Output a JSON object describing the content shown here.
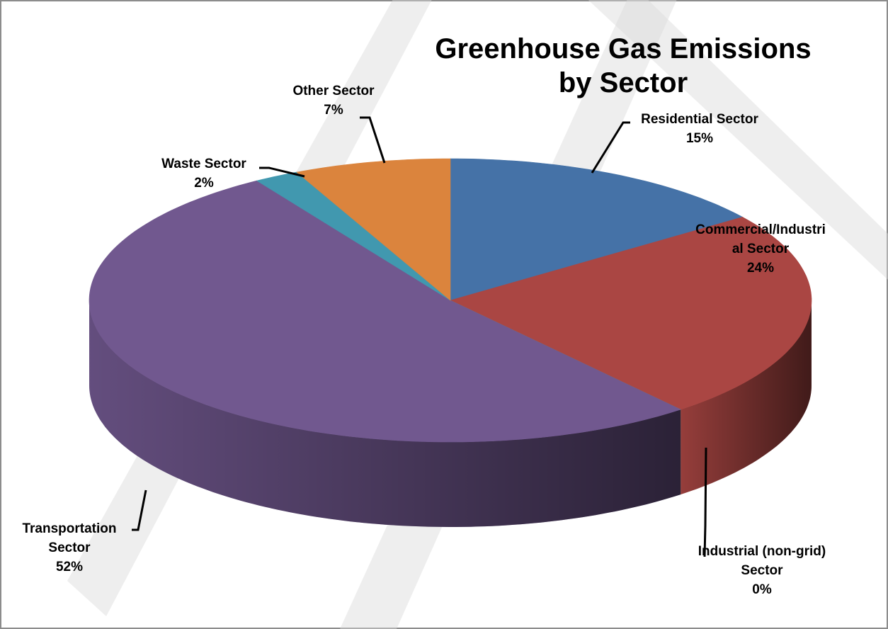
{
  "chart_data": {
    "type": "pie",
    "title": "Greenhouse Gas Emissions by Sector",
    "title_lines": [
      "Greenhouse Gas Emissions",
      "by Sector"
    ],
    "slices": [
      {
        "label": "Residential Sector",
        "value": 15,
        "value_label": "15%",
        "label_lines": [
          "Residential Sector",
          "15%"
        ],
        "color": "#4572a7"
      },
      {
        "label": "Commercial/Industrial Sector",
        "value": 24,
        "value_label": "24%",
        "label_lines": [
          "Commercial/Industri",
          "al Sector",
          "24%"
        ],
        "color": "#aa4643"
      },
      {
        "label": "Industrial (non-grid) Sector",
        "value": 0,
        "value_label": "0%",
        "label_lines": [
          "Industrial (non-grid)",
          "Sector",
          "0%"
        ],
        "color": "#89a54e"
      },
      {
        "label": "Transportation Sector",
        "value": 52,
        "value_label": "52%",
        "label_lines": [
          "Transportation",
          "Sector",
          "52%"
        ],
        "color": "#71588f"
      },
      {
        "label": "Waste Sector",
        "value": 2,
        "value_label": "2%",
        "label_lines": [
          "Waste Sector",
          "2%"
        ],
        "color": "#4198af"
      },
      {
        "label": "Other Sector",
        "value": 7,
        "value_label": "7%",
        "label_lines": [
          "Other Sector",
          "7%"
        ],
        "color": "#db843d"
      }
    ],
    "style": "3d-pie",
    "legend": "none",
    "data_labels": "outside with leader lines"
  }
}
